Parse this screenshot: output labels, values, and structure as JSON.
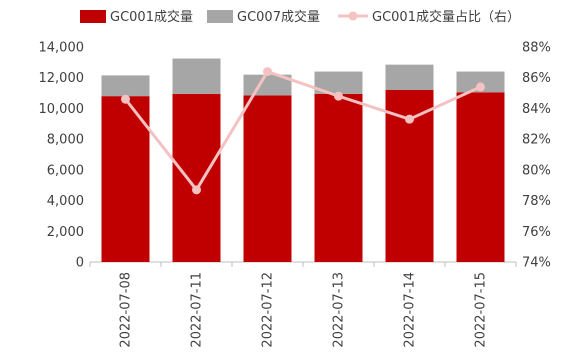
{
  "chart_data": {
    "type": "bar",
    "categories": [
      "2022-07-08",
      "2022-07-11",
      "2022-07-12",
      "2022-07-13",
      "2022-07-14",
      "2022-07-15"
    ],
    "series": [
      {
        "name": "GC001成交量",
        "kind": "bar",
        "stack": "volume",
        "axis": "left",
        "color": "#c00000",
        "values": [
          10800,
          10950,
          10850,
          10950,
          11200,
          11050
        ]
      },
      {
        "name": "GC007成交量",
        "kind": "bar",
        "stack": "volume",
        "axis": "left",
        "color": "#a6a6a6",
        "values": [
          1350,
          2300,
          1350,
          1450,
          1650,
          1350
        ]
      },
      {
        "name": "GC001成交量占比（右）",
        "kind": "line",
        "axis": "right",
        "color": "#f4c2c2",
        "values": [
          84.6,
          78.7,
          86.4,
          84.8,
          83.3,
          85.4
        ]
      }
    ],
    "y_left": {
      "min": 0,
      "max": 14000,
      "ticks": [
        "0",
        "2,000",
        "4,000",
        "6,000",
        "8,000",
        "10,000",
        "12,000",
        "14,000"
      ]
    },
    "y_right": {
      "min": 74,
      "max": 88,
      "ticks": [
        "74%",
        "76%",
        "78%",
        "80%",
        "82%",
        "84%",
        "86%",
        "88%"
      ]
    },
    "legend": {
      "position": "top"
    },
    "grid": false
  }
}
